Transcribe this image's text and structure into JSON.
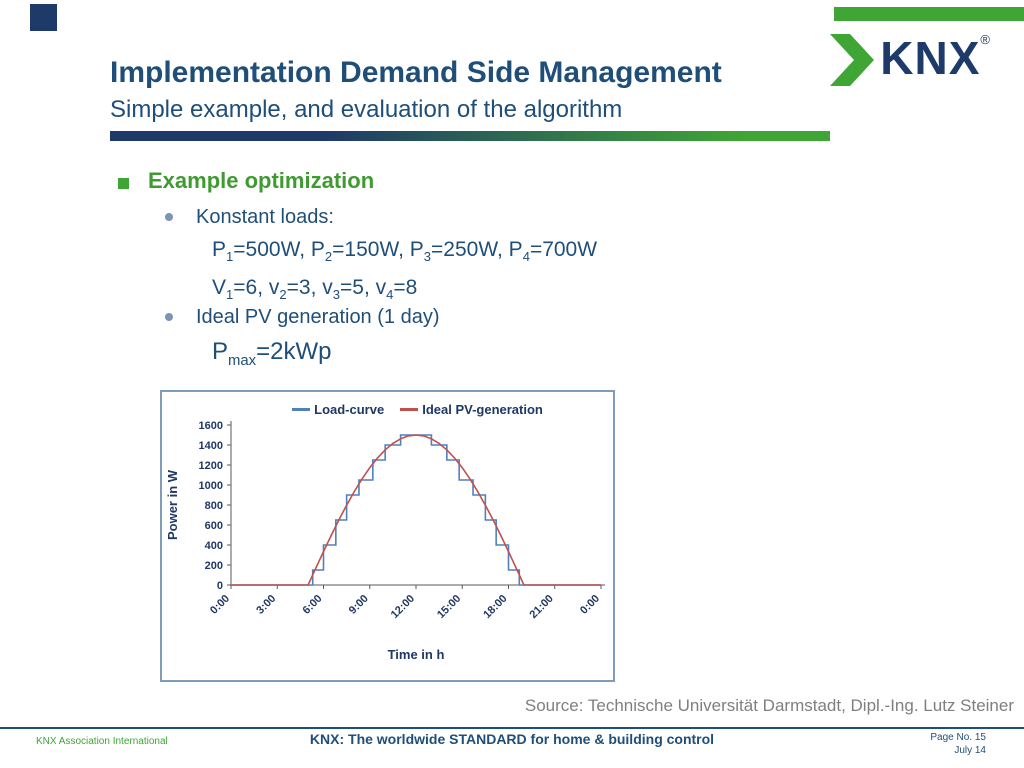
{
  "header": {
    "title": "Implementation Demand Side Management",
    "subtitle": "Simple example, and evaluation of the algorithm",
    "logo": {
      "text": "KNX",
      "registered": "®"
    }
  },
  "content": {
    "heading": "Example optimization",
    "bullet_loads": "Konstant loads:",
    "bullet_pv": "Ideal PV generation (1 day)",
    "formula_loads": [
      {
        "t": "P"
      },
      {
        "s": "1"
      },
      {
        "t": "=500W, P"
      },
      {
        "s": "2"
      },
      {
        "t": "=150W, P"
      },
      {
        "s": "3"
      },
      {
        "t": "=250W, P"
      },
      {
        "s": "4"
      },
      {
        "t": "=700W"
      }
    ],
    "formula_velocities": [
      {
        "t": "V"
      },
      {
        "s": "1"
      },
      {
        "t": "=6, v"
      },
      {
        "s": "2"
      },
      {
        "t": "=3, v"
      },
      {
        "s": "3"
      },
      {
        "t": "=5, v"
      },
      {
        "s": "4"
      },
      {
        "t": "=8"
      }
    ],
    "formula_pmax": [
      {
        "t": "P"
      },
      {
        "s": "max"
      },
      {
        "t": "=2kWp"
      }
    ]
  },
  "source": "Source: Technische Universität Darmstadt, Dipl.-Ing. Lutz Steiner",
  "footer": {
    "left": "KNX Association International",
    "center": "KNX: The worldwide STANDARD for home & building control",
    "page": "Page No. 15",
    "date": "July 14"
  },
  "colors": {
    "navy": "#1E3A68",
    "title_blue": "#1F4E79",
    "green": "#3FA535",
    "chart_blue": "#4F81BD",
    "chart_red": "#C0504D",
    "chart_border": "#7F9DB9",
    "source_gray": "#7F7F7F"
  },
  "chart_data": {
    "type": "line",
    "title": "",
    "xlabel": "Time in h",
    "ylabel": "Power in W",
    "xlim": [
      0,
      24
    ],
    "ylim": [
      0,
      1600
    ],
    "y_tick_step": 200,
    "x_tick_hours": [
      0,
      3,
      6,
      9,
      12,
      15,
      18,
      21,
      24
    ],
    "x_ticks": [
      "0:00",
      "3:00",
      "6:00",
      "9:00",
      "12:00",
      "15:00",
      "18:00",
      "21:00",
      "0:00"
    ],
    "grid": false,
    "legend_position": "top",
    "series": [
      {
        "name": "Load-curve",
        "color": "#4F81BD",
        "style": "step",
        "segments": [
          [
            0,
            5.3,
            0
          ],
          [
            5.3,
            6.0,
            150
          ],
          [
            6.0,
            6.8,
            400
          ],
          [
            6.8,
            7.5,
            650
          ],
          [
            7.5,
            8.3,
            900
          ],
          [
            8.3,
            9.2,
            1050
          ],
          [
            9.2,
            10.0,
            1250
          ],
          [
            10.0,
            11.0,
            1400
          ],
          [
            11.0,
            13.0,
            1500
          ],
          [
            13.0,
            14.0,
            1400
          ],
          [
            14.0,
            14.8,
            1250
          ],
          [
            14.8,
            15.7,
            1050
          ],
          [
            15.7,
            16.5,
            900
          ],
          [
            16.5,
            17.2,
            650
          ],
          [
            17.2,
            18.0,
            400
          ],
          [
            18.0,
            18.7,
            150
          ],
          [
            18.7,
            24,
            0
          ]
        ]
      },
      {
        "name": "Ideal PV-generation",
        "color": "#C0504D",
        "style": "smooth",
        "x": [
          0,
          5,
          5.5,
          6,
          6.5,
          7,
          7.5,
          8,
          8.5,
          9,
          9.5,
          10,
          10.5,
          11,
          11.5,
          12,
          12.5,
          13,
          13.5,
          14,
          14.5,
          15,
          15.5,
          16,
          16.5,
          17,
          17.5,
          18,
          18.5,
          19,
          24
        ],
        "y": [
          0,
          0,
          168,
          334,
          496,
          651,
          798,
          935,
          1061,
          1173,
          1270,
          1351,
          1416,
          1462,
          1491,
          1500,
          1491,
          1462,
          1416,
          1351,
          1270,
          1173,
          1061,
          935,
          798,
          651,
          496,
          334,
          168,
          0,
          0
        ]
      }
    ]
  }
}
